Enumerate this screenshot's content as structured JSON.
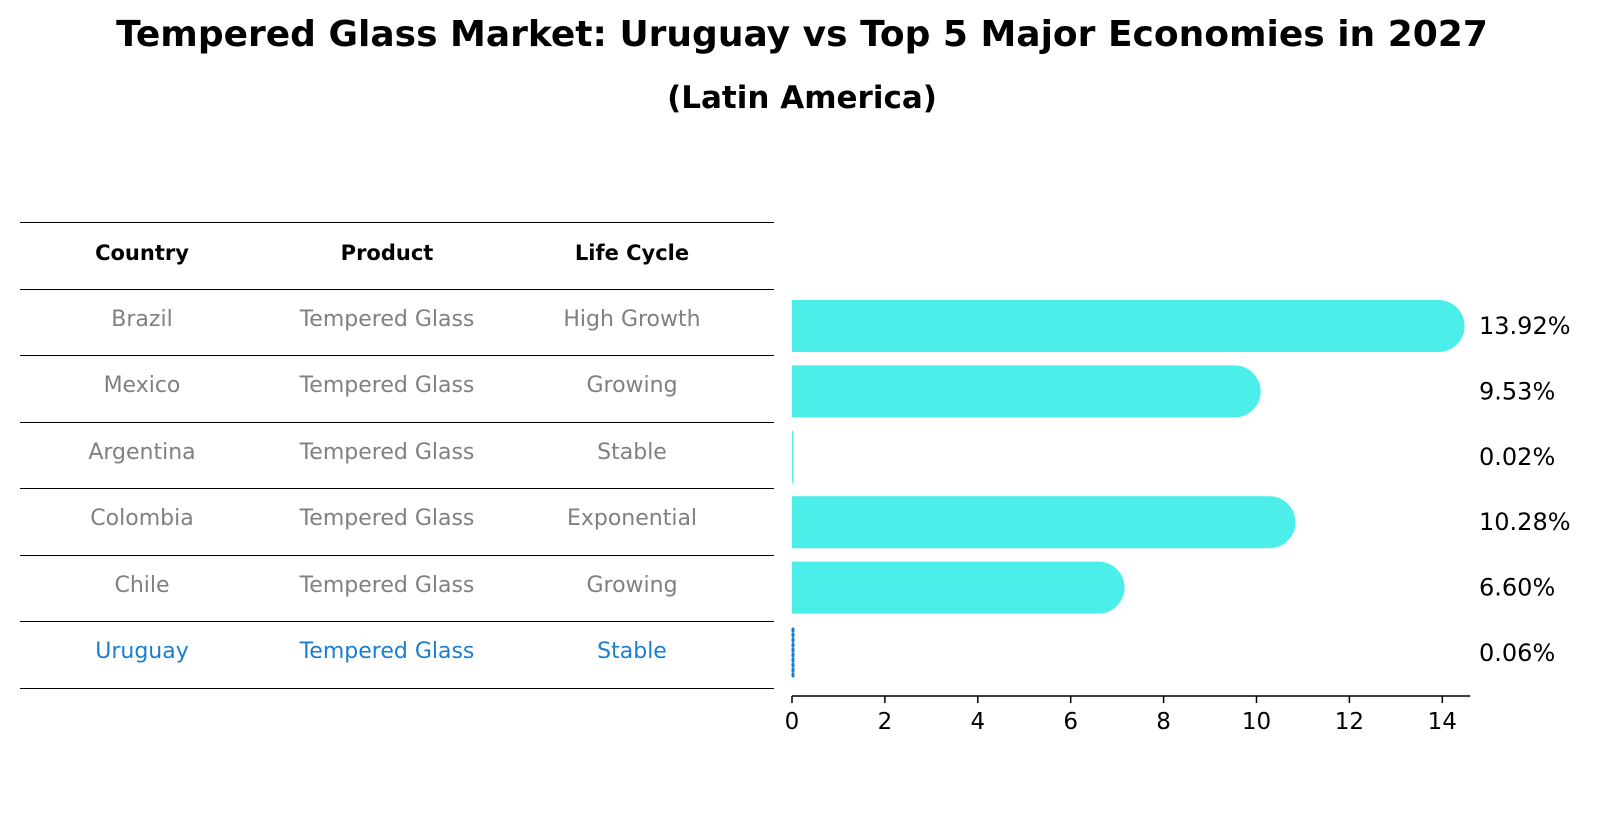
{
  "title": "Tempered Glass Market: Uruguay vs Top 5 Major Economies in 2027",
  "subtitle": "(Latin America)",
  "table": {
    "headers": [
      "Country",
      "Product",
      "Life Cycle"
    ],
    "rows": [
      {
        "country": "Brazil",
        "product": "Tempered Glass",
        "life_cycle": "High Growth"
      },
      {
        "country": "Mexico",
        "product": "Tempered Glass",
        "life_cycle": "Growing"
      },
      {
        "country": "Argentina",
        "product": "Tempered Glass",
        "life_cycle": "Stable"
      },
      {
        "country": "Colombia",
        "product": "Tempered Glass",
        "life_cycle": "Exponential"
      },
      {
        "country": "Chile",
        "product": "Tempered Glass",
        "life_cycle": "Growing"
      },
      {
        "country": "Uruguay",
        "product": "Tempered Glass",
        "life_cycle": "Stable"
      }
    ],
    "highlight_country": "Uruguay"
  },
  "colors": {
    "bar": "#4ceeea",
    "highlight": "#1a7ed0",
    "body_text": "#808080"
  },
  "chart_data": {
    "type": "bar",
    "orientation": "horizontal",
    "categories": [
      "Brazil",
      "Mexico",
      "Argentina",
      "Colombia",
      "Chile",
      "Uruguay"
    ],
    "values": [
      13.92,
      9.53,
      0.02,
      10.28,
      6.6,
      0.06
    ],
    "value_labels": [
      "13.92%",
      "9.53%",
      "0.02%",
      "10.28%",
      "6.60%",
      "0.06%"
    ],
    "xlim": [
      0,
      14.6
    ],
    "xticks": [
      0,
      2,
      4,
      6,
      8,
      10,
      12,
      14
    ],
    "xlabel": "",
    "ylabel": "",
    "grid": false
  }
}
